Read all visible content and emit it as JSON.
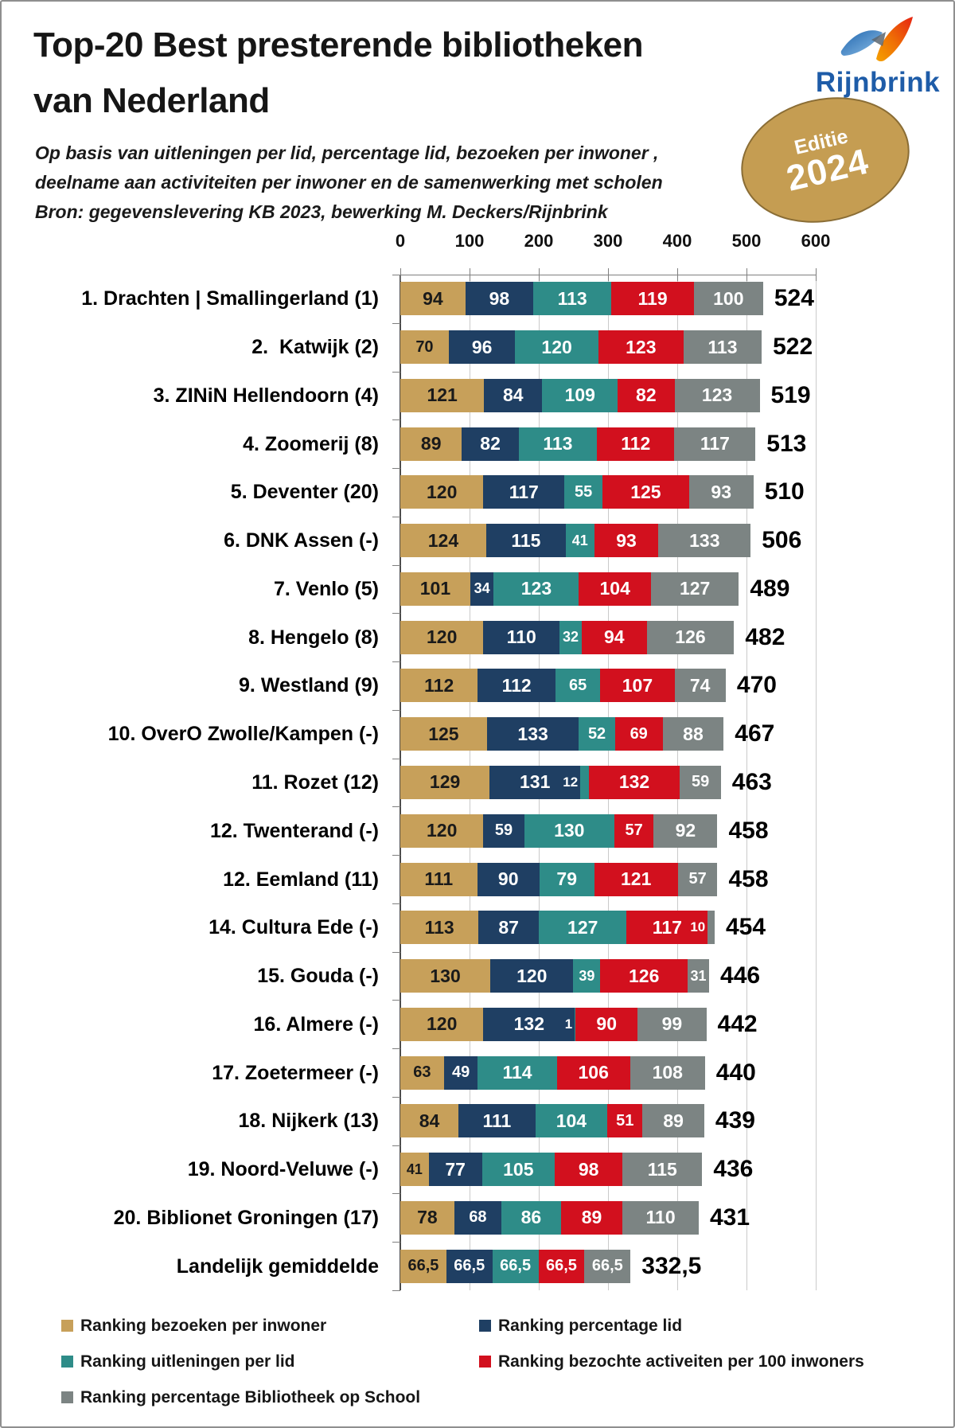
{
  "header": {
    "title_lines": [
      "Top-20 Best presterende bibliotheken",
      "van Nederland"
    ],
    "subtitle_lines": [
      "Op basis van uitleningen per lid, percentage lid, bezoeken per inwoner ,",
      "deelname aan activiteiten per inwoner en de samenwerking met scholen",
      "Bron: gegevenslevering KB 2023, bewerking M. Deckers/Rijnbrink"
    ],
    "logo": {
      "text": "Rijnbrink",
      "color": "#1e5ca8"
    },
    "badge": {
      "line1": "Editie",
      "line2": "2024",
      "fill": "#c59d52"
    }
  },
  "chart_data": {
    "type": "bar",
    "orientation": "horizontal",
    "stacked": true,
    "x_ticks": [
      0,
      100,
      200,
      300,
      400,
      500,
      600
    ],
    "xlim": [
      0,
      600
    ],
    "grid": true,
    "series_names": [
      "Ranking bezoeken per inwoner",
      "Ranking percentage lid",
      "Ranking uitleningen per lid",
      "Ranking bezochte activeiten per 100 inwoners",
      "Ranking percentage Bibliotheek op School"
    ],
    "series_colors": [
      "#c7a05a",
      "#1f3f63",
      "#2e8c88",
      "#d2101e",
      "#7c8483"
    ],
    "colors": {
      "grid": "#cacaca",
      "axis": "#4d4d4d",
      "tick": "#7f7f7f",
      "label_on_gold": "#1a1a1a",
      "label_on_dark": "#ffffff"
    },
    "rows": [
      {
        "label": "1. Drachten | Smallingerland (1)",
        "values": [
          94,
          98,
          113,
          119,
          100
        ],
        "total": 524,
        "total_label": "524"
      },
      {
        "label": "2.  Katwijk (2)",
        "values": [
          70,
          96,
          120,
          123,
          113
        ],
        "total": 522,
        "total_label": "522"
      },
      {
        "label": "3. ZINiN Hellendoorn (4)",
        "values": [
          121,
          84,
          109,
          82,
          123
        ],
        "total": 519,
        "total_label": "519"
      },
      {
        "label": "4. Zoomerij (8)",
        "values": [
          89,
          82,
          113,
          112,
          117
        ],
        "total": 513,
        "total_label": "513"
      },
      {
        "label": "5. Deventer (20)",
        "values": [
          120,
          117,
          55,
          125,
          93
        ],
        "total": 510,
        "total_label": "510"
      },
      {
        "label": "6. DNK Assen (-)",
        "values": [
          124,
          115,
          41,
          93,
          133
        ],
        "total": 506,
        "total_label": "506"
      },
      {
        "label": "7. Venlo (5)",
        "values": [
          101,
          34,
          123,
          104,
          127
        ],
        "total": 489,
        "total_label": "489"
      },
      {
        "label": "8. Hengelo (8)",
        "values": [
          120,
          110,
          32,
          94,
          126
        ],
        "total": 482,
        "total_label": "482"
      },
      {
        "label": "9. Westland (9)",
        "values": [
          112,
          112,
          65,
          107,
          74
        ],
        "total": 470,
        "total_label": "470"
      },
      {
        "label": "10. OverO Zwolle/Kampen (-)",
        "values": [
          125,
          133,
          52,
          69,
          88
        ],
        "total": 467,
        "total_label": "467"
      },
      {
        "label": "11. Rozet (12)",
        "values": [
          129,
          131,
          12,
          132,
          59
        ],
        "total": 463,
        "total_label": "463"
      },
      {
        "label": "12. Twenterand (-)",
        "values": [
          120,
          59,
          130,
          57,
          92
        ],
        "total": 458,
        "total_label": "458"
      },
      {
        "label": "12. Eemland (11)",
        "values": [
          111,
          90,
          79,
          121,
          57
        ],
        "total": 458,
        "total_label": "458"
      },
      {
        "label": "14. Cultura Ede (-)",
        "values": [
          113,
          87,
          127,
          117,
          10
        ],
        "total": 454,
        "total_label": "454"
      },
      {
        "label": "15. Gouda (-)",
        "values": [
          130,
          120,
          39,
          126,
          31
        ],
        "total": 446,
        "total_label": "446"
      },
      {
        "label": "16. Almere (-)",
        "values": [
          120,
          132,
          1,
          90,
          99
        ],
        "total": 442,
        "total_label": "442"
      },
      {
        "label": "17. Zoetermeer (-)",
        "values": [
          63,
          49,
          114,
          106,
          108
        ],
        "total": 440,
        "total_label": "440"
      },
      {
        "label": "18. Nijkerk (13)",
        "values": [
          84,
          111,
          104,
          51,
          89
        ],
        "total": 439,
        "total_label": "439"
      },
      {
        "label": "19. Noord-Veluwe (-)",
        "values": [
          41,
          77,
          105,
          98,
          115
        ],
        "total": 436,
        "total_label": "436"
      },
      {
        "label": "20. Biblionet Groningen (17)",
        "values": [
          78,
          68,
          86,
          89,
          110
        ],
        "total": 431,
        "total_label": "431"
      },
      {
        "label": "Landelijk gemiddelde",
        "values": [
          66.5,
          66.5,
          66.5,
          66.5,
          66.5
        ],
        "value_labels": [
          "66,5",
          "66,5",
          "66,5",
          "66,5",
          "66,5"
        ],
        "total": 332.5,
        "total_label": "332,5"
      }
    ],
    "legend": [
      {
        "label": "Ranking bezoeken per inwoner",
        "color": "#c7a05a"
      },
      {
        "label": "Ranking percentage lid",
        "color": "#1f3f63"
      },
      {
        "label": "Ranking uitleningen per lid",
        "color": "#2e8c88"
      },
      {
        "label": "Ranking bezochte activeiten per 100 inwoners",
        "color": "#d2101e"
      },
      {
        "label": "Ranking percentage Bibliotheek op School",
        "color": "#7c8483"
      }
    ],
    "legend_position": "bottom"
  }
}
